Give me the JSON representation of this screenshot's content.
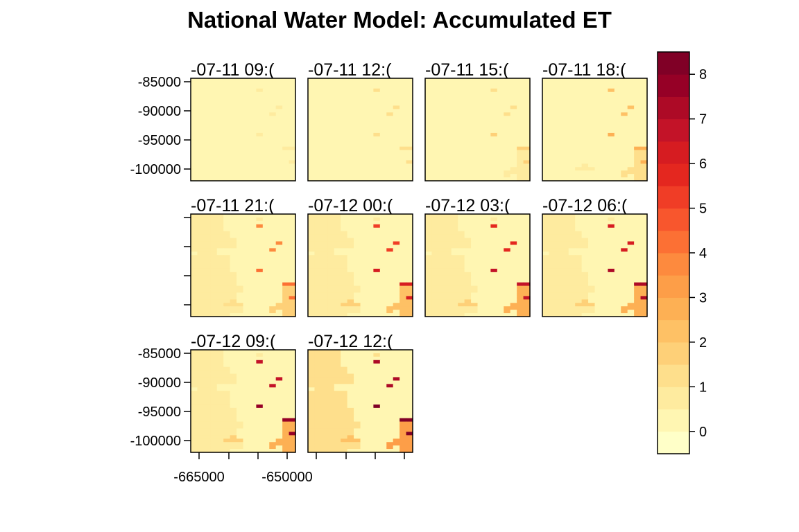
{
  "chart_data": {
    "type": "heatmap",
    "title": "National Water Model: Accumulated ET",
    "panels": [
      {
        "label": "-07-11 09:(",
        "scale": 0.1
      },
      {
        "label": "-07-11 12:(",
        "scale": 0.15
      },
      {
        "label": "-07-11 15:(",
        "scale": 0.2
      },
      {
        "label": "-07-11 18:(",
        "scale": 0.35
      },
      {
        "label": "-07-11 21:(",
        "scale": 0.55
      },
      {
        "label": "-07-12 00:(",
        "scale": 0.75
      },
      {
        "label": "-07-12 03:(",
        "scale": 0.85
      },
      {
        "label": "-07-12 06:(",
        "scale": 0.9
      },
      {
        "label": "-07-12 09:(",
        "scale": 0.95
      },
      {
        "label": "-07-12 12:(",
        "scale": 1.0
      }
    ],
    "base_grid": [
      [
        1,
        1,
        1,
        1,
        1,
        0,
        0,
        0,
        0,
        0,
        0,
        0,
        0,
        0,
        0,
        0
      ],
      [
        1,
        1,
        1,
        1,
        1,
        0,
        0,
        0,
        0,
        0,
        1,
        0,
        0,
        0,
        0,
        0
      ],
      [
        1,
        1,
        1,
        1,
        1,
        0,
        0,
        0,
        0,
        0,
        0,
        0,
        0,
        0,
        0,
        0
      ],
      [
        1,
        1,
        1,
        1,
        1,
        0,
        0,
        0,
        0,
        0,
        7,
        0,
        0,
        0,
        0,
        0
      ],
      [
        1,
        1,
        1,
        1,
        1,
        0,
        0,
        0,
        0,
        0,
        0,
        0,
        0,
        0,
        0,
        0
      ],
      [
        1,
        1,
        1,
        1,
        1,
        1,
        0,
        0,
        0,
        0,
        0,
        0,
        0,
        0,
        0,
        0
      ],
      [
        1,
        1,
        1,
        1,
        1,
        1,
        0,
        0,
        0,
        0,
        0,
        0,
        0,
        0,
        0,
        0
      ],
      [
        1,
        1,
        1,
        1,
        1,
        1,
        1,
        0,
        0,
        0,
        0,
        0,
        0,
        0,
        0,
        0
      ],
      [
        1,
        1,
        1,
        1,
        1,
        1,
        1,
        0,
        0,
        0,
        0,
        0,
        0,
        7,
        0,
        0
      ],
      [
        1,
        1,
        1,
        1,
        1,
        1,
        1,
        0,
        0,
        0,
        0,
        0,
        0,
        0,
        0,
        0
      ],
      [
        1,
        1,
        1,
        1,
        0,
        0,
        0,
        0,
        0,
        0,
        0,
        0,
        7,
        0,
        0,
        0
      ],
      [
        0,
        1,
        1,
        1,
        0,
        0,
        0,
        0,
        0,
        0,
        0,
        0,
        0,
        0,
        0,
        0
      ],
      [
        1,
        1,
        1,
        1,
        1,
        1,
        0,
        0,
        0,
        0,
        0,
        0,
        0,
        0,
        0,
        0
      ],
      [
        1,
        1,
        1,
        1,
        1,
        1,
        0,
        0,
        0,
        0,
        0,
        0,
        0,
        0,
        0,
        0
      ],
      [
        1,
        1,
        1,
        1,
        1,
        1,
        0,
        0,
        0,
        0,
        0,
        0,
        0,
        0,
        0,
        0
      ],
      [
        1,
        1,
        1,
        1,
        1,
        1,
        0,
        0,
        0,
        0,
        0,
        0,
        0,
        0,
        0,
        0
      ],
      [
        1,
        1,
        1,
        1,
        1,
        1,
        0,
        0,
        0,
        0,
        8,
        0,
        0,
        0,
        0,
        0
      ],
      [
        1,
        1,
        1,
        1,
        1,
        1,
        1,
        0,
        0,
        0,
        0,
        0,
        0,
        0,
        0,
        0
      ],
      [
        1,
        1,
        1,
        1,
        1,
        1,
        1,
        0,
        0,
        0,
        0,
        0,
        0,
        0,
        0,
        0
      ],
      [
        1,
        1,
        1,
        1,
        1,
        1,
        1,
        0,
        0,
        0,
        0,
        0,
        0,
        0,
        0,
        0
      ],
      [
        1,
        1,
        1,
        1,
        1,
        1,
        1,
        0,
        0,
        0,
        0,
        0,
        0,
        0,
        8,
        8
      ],
      [
        1,
        1,
        1,
        1,
        1,
        1,
        1,
        1,
        0,
        0,
        0,
        0,
        0,
        0,
        3,
        3
      ],
      [
        1,
        1,
        1,
        1,
        1,
        1,
        1,
        1,
        0,
        0,
        0,
        0,
        0,
        0,
        3,
        3
      ],
      [
        1,
        1,
        1,
        1,
        1,
        1,
        1,
        0,
        0,
        0,
        0,
        0,
        0,
        0,
        3,
        3
      ],
      [
        1,
        1,
        1,
        1,
        1,
        1,
        1,
        0,
        0,
        0,
        0,
        0,
        0,
        0,
        3,
        8
      ],
      [
        1,
        1,
        1,
        1,
        1,
        1,
        2,
        0,
        0,
        0,
        0,
        0,
        0,
        0,
        3,
        3
      ],
      [
        1,
        1,
        1,
        1,
        1,
        2,
        2,
        2,
        0,
        0,
        0,
        0,
        0,
        3,
        3,
        3
      ],
      [
        1,
        1,
        1,
        1,
        1,
        1,
        1,
        1,
        0,
        0,
        0,
        0,
        3,
        3,
        3,
        3
      ],
      [
        1,
        1,
        1,
        1,
        1,
        1,
        1,
        1,
        0,
        0,
        0,
        0,
        3,
        0,
        3,
        3
      ],
      [
        1,
        1,
        1,
        1,
        1,
        1,
        0,
        0,
        0,
        0,
        0,
        0,
        0,
        0,
        3,
        3
      ]
    ],
    "zlim": [
      -0.5,
      8.5
    ],
    "colorbar": {
      "breaks": [
        -0.5,
        0,
        0.5,
        1,
        1.5,
        2,
        2.5,
        3,
        3.5,
        4,
        4.5,
        5,
        5.5,
        6,
        6.5,
        7,
        7.5,
        8,
        8.5
      ],
      "colors": [
        "#FFFFC8",
        "#FFF6B2",
        "#FEEB9F",
        "#FEDF8C",
        "#FED078",
        "#FEC165",
        "#FDB054",
        "#FD9E48",
        "#FD8A3E",
        "#FC7034",
        "#F8562D",
        "#F03D26",
        "#E4271F",
        "#D61C21",
        "#C31328",
        "#AD0A26",
        "#960026",
        "#800026"
      ],
      "ticks": [
        "0",
        "1",
        "2",
        "3",
        "4",
        "5",
        "6",
        "7",
        "8"
      ]
    },
    "y_ticks": [
      "-85000",
      "-90000",
      "-95000",
      "-100000"
    ],
    "x_ticks": [
      "-665000",
      "-650000"
    ]
  }
}
